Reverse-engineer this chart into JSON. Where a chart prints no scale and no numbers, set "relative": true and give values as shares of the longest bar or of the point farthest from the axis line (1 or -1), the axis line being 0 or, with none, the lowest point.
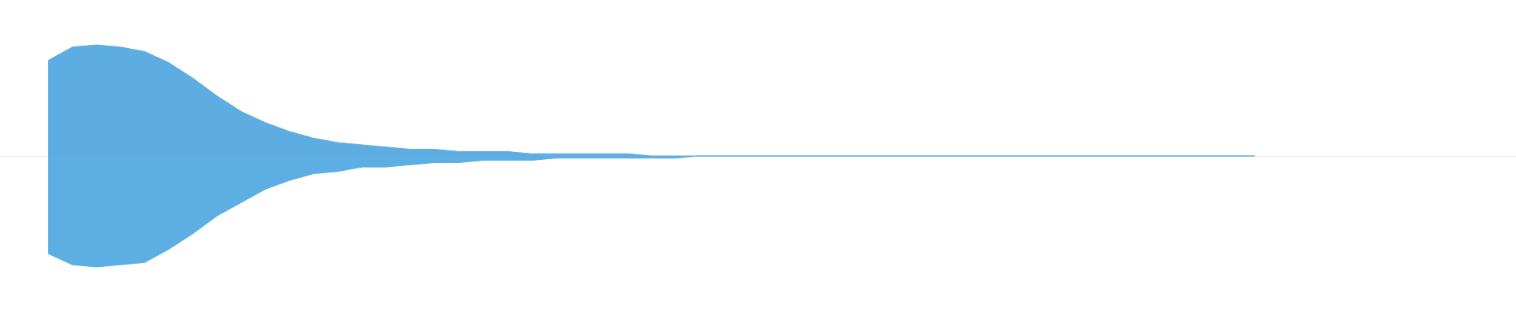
{
  "chart_data": {
    "type": "area",
    "relative": true,
    "categories": [
      null,
      null,
      null,
      null,
      null,
      null,
      null,
      null,
      null,
      null,
      null,
      null,
      null,
      null,
      null,
      null,
      null,
      null,
      null,
      null,
      null,
      null,
      null,
      null,
      null,
      null,
      null,
      null,
      null,
      null,
      null,
      null,
      null,
      null,
      null,
      null,
      null,
      null,
      null,
      null,
      null,
      null,
      null,
      null,
      null,
      null,
      null,
      null,
      null,
      null,
      null
    ],
    "series": [
      {
        "color": "#5dade2",
        "values": [
          0.86,
          0.98,
          1.0,
          0.98,
          0.94,
          0.84,
          0.7,
          0.54,
          0.4,
          0.3,
          0.22,
          0.16,
          0.12,
          0.1,
          0.08,
          0.06,
          0.06,
          0.04,
          0.04,
          0.04,
          0.02,
          0.02,
          0.02,
          0.02,
          0.02,
          0,
          0,
          0,
          0,
          0,
          0,
          0,
          0,
          0,
          0,
          0,
          0,
          0,
          0,
          0,
          0,
          0,
          0,
          0,
          0,
          0,
          0,
          0,
          0,
          0,
          0
        ]
      },
      {
        "color": "#5caee3",
        "values": [
          -0.88,
          -0.98,
          -1.0,
          -0.98,
          -0.96,
          -0.84,
          -0.7,
          -0.54,
          -0.42,
          -0.3,
          -0.22,
          -0.16,
          -0.14,
          -0.1,
          -0.1,
          -0.08,
          -0.06,
          -0.06,
          -0.04,
          -0.04,
          -0.04,
          -0.02,
          -0.02,
          -0.02,
          -0.02,
          -0.02,
          -0.02,
          0,
          0,
          0,
          0,
          0,
          0,
          0,
          0,
          0,
          0,
          0,
          0,
          0,
          0,
          0,
          0,
          0,
          0,
          0,
          0,
          0,
          0,
          0,
          0
        ]
      }
    ]
  }
}
